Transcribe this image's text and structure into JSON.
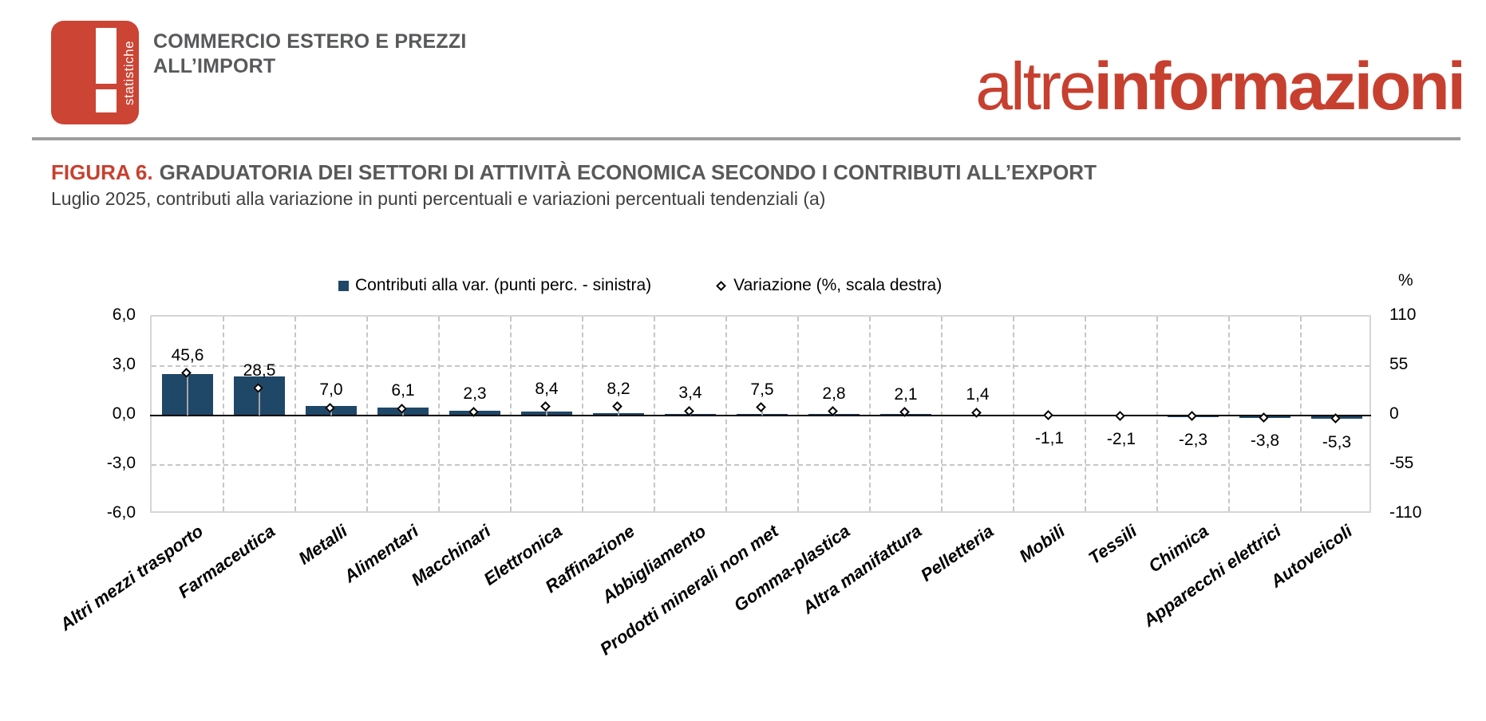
{
  "header": {
    "logo_vertical_text": "statistiche",
    "title_line1": "COMMERCIO ESTERO E PREZZI",
    "title_line2": "ALL’IMPORT",
    "brand_light": "altre",
    "brand_bold": "informazioni"
  },
  "figure": {
    "label": "FIGURA 6.",
    "title": "GRADUATORIA DEI SETTORI DI ATTIVITÀ ECONOMICA SECONDO I CONTRIBUTI ALL’EXPORT",
    "subtitle": "Luglio 2025, contributi alla variazione in punti percentuali e variazioni percentuali tendenziali (a)"
  },
  "colors": {
    "accent_red": "#c7402f",
    "title_gray": "#595959",
    "header_gray": "#58595b",
    "divider_gray": "#9e9e9e"
  },
  "chart_data": {
    "type": "bar",
    "subtype": "combo bar + diamond markers",
    "categories": [
      "Altri mezzi trasporto",
      "Farmaceutica",
      "Metalli",
      "Alimentari",
      "Macchinari",
      "Elettronica",
      "Raffinazione",
      "Abbigliamento",
      "Prodotti minerali non met",
      "Gomma-plastica",
      "Altra manifattura",
      "Pelletteria",
      "Mobili",
      "Tessili",
      "Chimica",
      "Apparecchi elettrici",
      "Autoveicoli"
    ],
    "series": [
      {
        "name": "Contributi alla var. (punti perc. - sinistra)",
        "type": "bar",
        "axis": "left",
        "values": [
          2.5,
          2.35,
          0.6,
          0.5,
          0.3,
          0.25,
          0.15,
          0.1,
          0.1,
          0.1,
          0.075,
          0.05,
          -0.05,
          -0.05,
          -0.1,
          -0.15,
          -0.2
        ]
      },
      {
        "name": "Variazione (%, scala destra)",
        "type": "scatter-diamond",
        "axis": "right",
        "values": [
          45.6,
          28.5,
          7.0,
          6.1,
          2.3,
          8.4,
          8.2,
          3.4,
          7.5,
          2.8,
          2.1,
          1.4,
          -1.1,
          -2.1,
          -2.3,
          -3.8,
          -5.3
        ],
        "value_labels": [
          "45,6",
          "28,5",
          "7,0",
          "6,1",
          "2,3",
          "8,4",
          "8,2",
          "3,4",
          "7,5",
          "2,8",
          "2,1",
          "1,4",
          "-1,1",
          "-2,1",
          "-2,3",
          "-3,8",
          "-5,3"
        ]
      }
    ],
    "left_axis": {
      "ticks": [
        "6,0",
        "3,0",
        "0,0",
        "-3,0",
        "-6,0"
      ],
      "min": -6,
      "max": 6
    },
    "right_axis": {
      "title": "%",
      "ticks": [
        "110",
        "55",
        "0",
        "-55",
        "-110"
      ],
      "min": -110,
      "max": 110
    },
    "grid": {
      "horizontal_dashed_at": [
        3,
        -3
      ],
      "vertical_dashed": "category boundaries",
      "zero_line": true
    },
    "legend_position": "top",
    "colors": {
      "bar": "#1f4767",
      "marker_fill": "#ffffff",
      "marker_border": "#000000",
      "stem": "#a6a6a6",
      "grid": "#c6c6c6",
      "zero_line": "#000000"
    }
  }
}
